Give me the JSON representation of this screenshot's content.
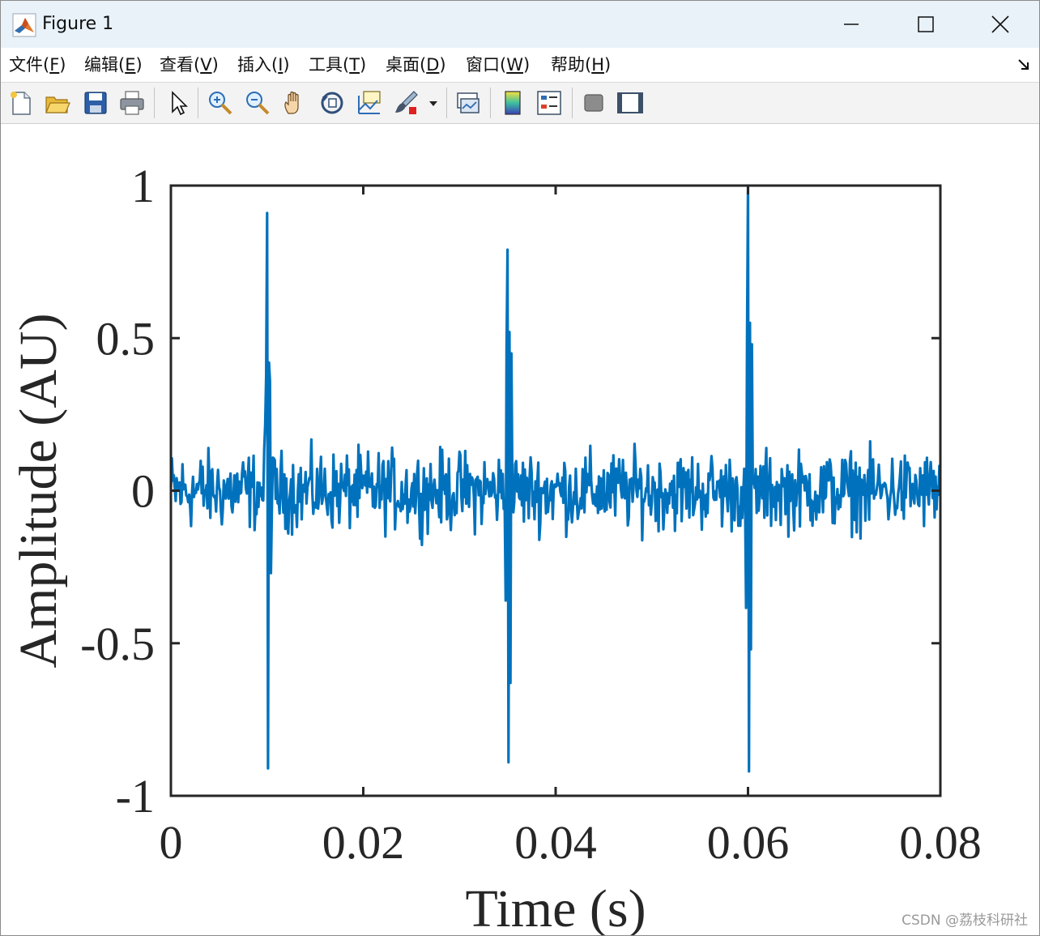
{
  "window": {
    "title": "Figure 1",
    "controls": [
      "minimize",
      "maximize",
      "close"
    ]
  },
  "menubar": {
    "items": [
      "文件(F)",
      "编辑(E)",
      "查看(V)",
      "插入(I)",
      "工具(T)",
      "桌面(D)",
      "窗口(W)",
      "帮助(H)"
    ],
    "mnemonics": [
      "F",
      "E",
      "V",
      "I",
      "T",
      "D",
      "W",
      "H"
    ]
  },
  "toolbar": {
    "icons": [
      "new-figure-icon",
      "open-file-icon",
      "save-icon",
      "print-icon",
      "pointer-icon",
      "zoom-in-icon",
      "zoom-out-icon",
      "pan-hand-icon",
      "rotate-3d-icon",
      "data-cursor-icon",
      "brush-icon",
      "brush-dropdown-icon",
      "link-plot-icon",
      "colorbar-icon",
      "legend-icon",
      "hide-plot-tools-icon",
      "show-plot-tools-icon"
    ]
  },
  "colors": {
    "series": "#0072BD",
    "axes": "#262626",
    "titlebar": "#e9f2f9"
  },
  "chart_data": {
    "type": "line",
    "title": "",
    "xlabel": "Time (s)",
    "ylabel": "Amplitude (AU)",
    "xlim": [
      0,
      0.08
    ],
    "ylim": [
      -1,
      1
    ],
    "xticks": [
      0,
      0.02,
      0.04,
      0.06,
      0.08
    ],
    "xtick_labels": [
      "0",
      "0.02",
      "0.04",
      "0.06",
      "0.08"
    ],
    "yticks": [
      -1,
      -0.5,
      0,
      0.5,
      1
    ],
    "ytick_labels": [
      "-1",
      "-0.5",
      "0",
      "0.5",
      "1"
    ],
    "grid": false,
    "legend": null,
    "sample_interval": 0.0001,
    "noise_amplitude": 0.1,
    "impulses": [
      {
        "t": 0.01,
        "peaks": [
          0.91,
          -0.91,
          0.42,
          0.36,
          -0.27
        ]
      },
      {
        "t": 0.035,
        "peaks": [
          0.79,
          -0.89,
          0.52,
          -0.63,
          0.45
        ]
      },
      {
        "t": 0.06,
        "peaks": [
          1.0,
          -0.92,
          0.55,
          -0.52,
          0.48
        ]
      }
    ]
  },
  "watermark": "CSDN @荔枝科研社"
}
